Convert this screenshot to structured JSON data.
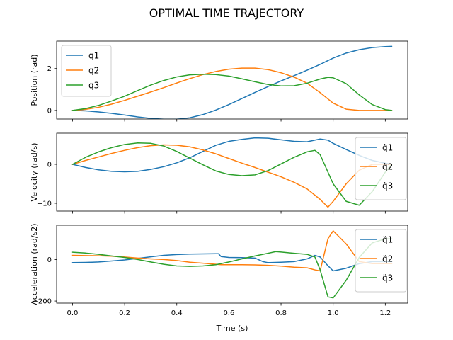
{
  "figure": {
    "title": "OPTIMAL TIME TRAJECTORY"
  },
  "colors": {
    "s1": "#1f77b4",
    "s2": "#ff7f0e",
    "s3": "#2ca02c"
  },
  "chart_data": [
    {
      "type": "line",
      "ylabel": "Position (rad)",
      "xlabel": "",
      "xlim": [
        -0.061,
        1.286
      ],
      "ylim": [
        -0.41,
        3.31
      ],
      "xticks": [
        0.0,
        0.2,
        0.4,
        0.6,
        0.8,
        1.0,
        1.2
      ],
      "xtick_labels": [
        "",
        "",
        "",
        "",
        "",
        "",
        ""
      ],
      "yticks": [
        0,
        2
      ],
      "ytick_labels": [
        "0",
        "2"
      ],
      "legend": "top-left",
      "series": [
        {
          "name": "q1",
          "points": [
            [
              0,
              0
            ],
            [
              0.05,
              -0.02
            ],
            [
              0.1,
              -0.07
            ],
            [
              0.15,
              -0.14
            ],
            [
              0.2,
              -0.22
            ],
            [
              0.25,
              -0.31
            ],
            [
              0.3,
              -0.38
            ],
            [
              0.35,
              -0.42
            ],
            [
              0.4,
              -0.42
            ],
            [
              0.45,
              -0.35
            ],
            [
              0.5,
              -0.2
            ],
            [
              0.55,
              0.02
            ],
            [
              0.6,
              0.28
            ],
            [
              0.65,
              0.57
            ],
            [
              0.7,
              0.86
            ],
            [
              0.75,
              1.14
            ],
            [
              0.8,
              1.41
            ],
            [
              0.85,
              1.66
            ],
            [
              0.9,
              1.92
            ],
            [
              0.95,
              2.2
            ],
            [
              1.0,
              2.5
            ],
            [
              1.05,
              2.74
            ],
            [
              1.1,
              2.9
            ],
            [
              1.15,
              3.0
            ],
            [
              1.2,
              3.05
            ],
            [
              1.225,
              3.06
            ]
          ]
        },
        {
          "name": "q2",
          "points": [
            [
              0,
              0
            ],
            [
              0.05,
              0.05
            ],
            [
              0.1,
              0.15
            ],
            [
              0.15,
              0.3
            ],
            [
              0.2,
              0.48
            ],
            [
              0.25,
              0.68
            ],
            [
              0.3,
              0.88
            ],
            [
              0.35,
              1.09
            ],
            [
              0.4,
              1.31
            ],
            [
              0.45,
              1.52
            ],
            [
              0.5,
              1.71
            ],
            [
              0.55,
              1.86
            ],
            [
              0.6,
              1.97
            ],
            [
              0.65,
              2.02
            ],
            [
              0.7,
              2.02
            ],
            [
              0.75,
              1.95
            ],
            [
              0.8,
              1.8
            ],
            [
              0.85,
              1.59
            ],
            [
              0.9,
              1.3
            ],
            [
              0.95,
              0.85
            ],
            [
              1.0,
              0.35
            ],
            [
              1.05,
              0.06
            ],
            [
              1.1,
              0
            ],
            [
              1.15,
              0
            ],
            [
              1.2,
              0
            ],
            [
              1.225,
              0
            ]
          ]
        },
        {
          "name": "q3",
          "points": [
            [
              0,
              0
            ],
            [
              0.05,
              0.09
            ],
            [
              0.1,
              0.24
            ],
            [
              0.15,
              0.45
            ],
            [
              0.2,
              0.68
            ],
            [
              0.25,
              0.95
            ],
            [
              0.3,
              1.21
            ],
            [
              0.35,
              1.43
            ],
            [
              0.4,
              1.6
            ],
            [
              0.45,
              1.7
            ],
            [
              0.5,
              1.73
            ],
            [
              0.55,
              1.71
            ],
            [
              0.6,
              1.64
            ],
            [
              0.65,
              1.51
            ],
            [
              0.7,
              1.37
            ],
            [
              0.75,
              1.24
            ],
            [
              0.8,
              1.17
            ],
            [
              0.85,
              1.18
            ],
            [
              0.9,
              1.3
            ],
            [
              0.95,
              1.5
            ],
            [
              0.98,
              1.58
            ],
            [
              1.0,
              1.56
            ],
            [
              1.05,
              1.28
            ],
            [
              1.1,
              0.74
            ],
            [
              1.15,
              0.28
            ],
            [
              1.2,
              0.04
            ],
            [
              1.225,
              0
            ]
          ]
        }
      ]
    },
    {
      "type": "line",
      "ylabel": "Velocity (rad/s)",
      "xlabel": "",
      "xlim": [
        -0.061,
        1.286
      ],
      "ylim": [
        -12.0,
        8.0
      ],
      "xticks": [
        0.0,
        0.2,
        0.4,
        0.6,
        0.8,
        1.0,
        1.2
      ],
      "xtick_labels": [
        "",
        "",
        "",
        "",
        "",
        "",
        ""
      ],
      "yticks": [
        -10,
        0
      ],
      "ytick_labels": [
        "−10",
        "0"
      ],
      "legend": "top-right",
      "series": [
        {
          "name": "q̇1",
          "points": [
            [
              0,
              0
            ],
            [
              0.05,
              -0.8
            ],
            [
              0.1,
              -1.4
            ],
            [
              0.15,
              -1.8
            ],
            [
              0.2,
              -1.9
            ],
            [
              0.25,
              -1.8
            ],
            [
              0.3,
              -1.3
            ],
            [
              0.35,
              -0.6
            ],
            [
              0.4,
              0.4
            ],
            [
              0.45,
              1.7
            ],
            [
              0.5,
              3.3
            ],
            [
              0.55,
              4.9
            ],
            [
              0.6,
              5.9
            ],
            [
              0.65,
              6.4
            ],
            [
              0.7,
              6.8
            ],
            [
              0.75,
              6.7
            ],
            [
              0.8,
              6.3
            ],
            [
              0.85,
              5.9
            ],
            [
              0.9,
              5.8
            ],
            [
              0.95,
              6.5
            ],
            [
              0.98,
              6.2
            ],
            [
              1.0,
              5.4
            ],
            [
              1.05,
              3.8
            ],
            [
              1.1,
              2.3
            ],
            [
              1.15,
              1.0
            ],
            [
              1.2,
              0.3
            ],
            [
              1.225,
              0
            ]
          ]
        },
        {
          "name": "q̇2",
          "points": [
            [
              0,
              0
            ],
            [
              0.05,
              1.0
            ],
            [
              0.1,
              1.9
            ],
            [
              0.15,
              2.8
            ],
            [
              0.2,
              3.6
            ],
            [
              0.25,
              4.3
            ],
            [
              0.3,
              4.8
            ],
            [
              0.35,
              5.0
            ],
            [
              0.4,
              4.9
            ],
            [
              0.45,
              4.5
            ],
            [
              0.5,
              3.7
            ],
            [
              0.55,
              2.7
            ],
            [
              0.6,
              1.5
            ],
            [
              0.65,
              0.3
            ],
            [
              0.7,
              -0.8
            ],
            [
              0.75,
              -2.0
            ],
            [
              0.8,
              -3.2
            ],
            [
              0.85,
              -4.6
            ],
            [
              0.9,
              -6.3
            ],
            [
              0.95,
              -9.0
            ],
            [
              0.98,
              -11.0
            ],
            [
              1.0,
              -9.5
            ],
            [
              1.05,
              -5.0
            ],
            [
              1.1,
              -1.5
            ],
            [
              1.15,
              0
            ],
            [
              1.2,
              0
            ],
            [
              1.225,
              0
            ]
          ]
        },
        {
          "name": "q̇3",
          "points": [
            [
              0,
              0
            ],
            [
              0.05,
              1.8
            ],
            [
              0.1,
              3.2
            ],
            [
              0.15,
              4.3
            ],
            [
              0.2,
              5.1
            ],
            [
              0.25,
              5.5
            ],
            [
              0.3,
              5.4
            ],
            [
              0.35,
              4.7
            ],
            [
              0.4,
              3.3
            ],
            [
              0.45,
              1.6
            ],
            [
              0.5,
              -0.1
            ],
            [
              0.55,
              -1.7
            ],
            [
              0.6,
              -2.6
            ],
            [
              0.65,
              -2.9
            ],
            [
              0.7,
              -2.7
            ],
            [
              0.75,
              -1.6
            ],
            [
              0.8,
              0.1
            ],
            [
              0.85,
              1.8
            ],
            [
              0.9,
              3.2
            ],
            [
              0.93,
              3.6
            ],
            [
              0.95,
              2.5
            ],
            [
              1.0,
              -5.0
            ],
            [
              1.05,
              -9.5
            ],
            [
              1.1,
              -10.5
            ],
            [
              1.15,
              -7.0
            ],
            [
              1.2,
              -2.0
            ],
            [
              1.225,
              0
            ]
          ]
        }
      ]
    },
    {
      "type": "line",
      "ylabel": "Acceleration (rad/s2)",
      "xlabel": "Time (s)",
      "xlim": [
        -0.061,
        1.286
      ],
      "ylim": [
        -210,
        165
      ],
      "xticks": [
        0.0,
        0.2,
        0.4,
        0.6,
        0.8,
        1.0,
        1.2
      ],
      "xtick_labels": [
        "0.0",
        "0.2",
        "0.4",
        "0.6",
        "0.8",
        "1.0",
        "1.2"
      ],
      "yticks": [
        -200,
        0
      ],
      "ytick_labels": [
        "−200",
        "0"
      ],
      "legend": "top-right",
      "series": [
        {
          "name": "q̈1",
          "points": [
            [
              0,
              -15
            ],
            [
              0.05,
              -14
            ],
            [
              0.1,
              -12
            ],
            [
              0.15,
              -7
            ],
            [
              0.2,
              -2
            ],
            [
              0.25,
              5
            ],
            [
              0.3,
              13
            ],
            [
              0.35,
              20
            ],
            [
              0.4,
              24
            ],
            [
              0.45,
              26
            ],
            [
              0.5,
              27
            ],
            [
              0.55,
              28
            ],
            [
              0.56,
              28
            ],
            [
              0.57,
              14
            ],
            [
              0.6,
              10
            ],
            [
              0.65,
              9
            ],
            [
              0.7,
              7
            ],
            [
              0.73,
              -10
            ],
            [
              0.75,
              -15
            ],
            [
              0.8,
              -13
            ],
            [
              0.85,
              -10
            ],
            [
              0.9,
              3
            ],
            [
              0.93,
              20
            ],
            [
              0.95,
              12
            ],
            [
              0.98,
              -30
            ],
            [
              1.0,
              -55
            ],
            [
              1.05,
              -42
            ],
            [
              1.1,
              -20
            ],
            [
              1.15,
              -10
            ],
            [
              1.2,
              -10
            ],
            [
              1.225,
              -10
            ]
          ]
        },
        {
          "name": "q̈2",
          "points": [
            [
              0,
              20
            ],
            [
              0.05,
              19
            ],
            [
              0.1,
              18
            ],
            [
              0.15,
              16
            ],
            [
              0.2,
              12
            ],
            [
              0.25,
              7
            ],
            [
              0.3,
              3
            ],
            [
              0.35,
              0
            ],
            [
              0.4,
              -5
            ],
            [
              0.45,
              -13
            ],
            [
              0.5,
              -18
            ],
            [
              0.55,
              -23
            ],
            [
              0.57,
              -25
            ],
            [
              0.6,
              -25
            ],
            [
              0.65,
              -25
            ],
            [
              0.7,
              -26
            ],
            [
              0.75,
              -28
            ],
            [
              0.8,
              -32
            ],
            [
              0.85,
              -37
            ],
            [
              0.9,
              -40
            ],
            [
              0.93,
              -50
            ],
            [
              0.95,
              -55
            ],
            [
              0.98,
              100
            ],
            [
              1.0,
              138
            ],
            [
              1.05,
              75
            ],
            [
              1.1,
              -10
            ],
            [
              1.15,
              -20
            ],
            [
              1.2,
              -20
            ],
            [
              1.225,
              -20
            ]
          ]
        },
        {
          "name": "q̈3",
          "points": [
            [
              0,
              35
            ],
            [
              0.05,
              31
            ],
            [
              0.1,
              25
            ],
            [
              0.15,
              17
            ],
            [
              0.2,
              10
            ],
            [
              0.25,
              0
            ],
            [
              0.3,
              -12
            ],
            [
              0.35,
              -23
            ],
            [
              0.4,
              -31
            ],
            [
              0.45,
              -33
            ],
            [
              0.5,
              -31
            ],
            [
              0.55,
              -25
            ],
            [
              0.6,
              -12
            ],
            [
              0.65,
              3
            ],
            [
              0.7,
              17
            ],
            [
              0.75,
              30
            ],
            [
              0.78,
              38
            ],
            [
              0.8,
              36
            ],
            [
              0.85,
              30
            ],
            [
              0.9,
              25
            ],
            [
              0.93,
              12
            ],
            [
              0.95,
              -50
            ],
            [
              0.98,
              -180
            ],
            [
              1.0,
              -185
            ],
            [
              1.05,
              -100
            ],
            [
              1.1,
              10
            ],
            [
              1.15,
              80
            ],
            [
              1.2,
              100
            ],
            [
              1.225,
              100
            ]
          ]
        }
      ]
    }
  ]
}
